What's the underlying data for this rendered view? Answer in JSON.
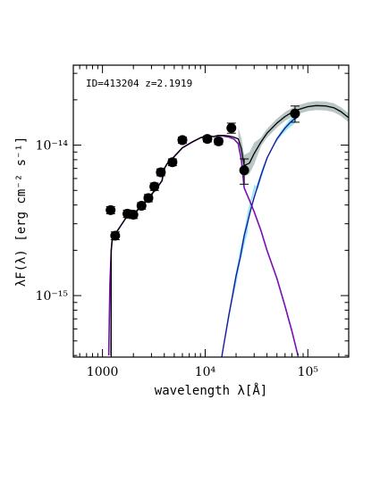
{
  "chart_data": {
    "type": "scatter",
    "annotation": "ID=413204 z=2.1919",
    "xlabel": "wavelength λ[Å]",
    "ylabel": "λF(λ) [erg cm⁻² s⁻¹]",
    "xscale": "log",
    "yscale": "log",
    "xlim": [
      520,
      250000
    ],
    "ylim": [
      3.9e-16,
      3.4e-14
    ],
    "grid": false,
    "legend": "none",
    "x_ticks": [
      {
        "value": 1000,
        "label": "1000"
      },
      {
        "value": 10000,
        "label": "10⁴"
      },
      {
        "value": 100000,
        "label": "10⁵"
      }
    ],
    "y_ticks": [
      {
        "value": 1e-15,
        "label": "10⁻¹⁵"
      },
      {
        "value": 1e-14,
        "label": "10⁻¹⁴"
      }
    ],
    "points": [
      {
        "x": 1200,
        "y": 3.7e-15,
        "err": 2e-16
      },
      {
        "x": 1330,
        "y": 2.5e-15,
        "err": 1.5e-16
      },
      {
        "x": 1750,
        "y": 3.5e-15,
        "err": 2e-16
      },
      {
        "x": 2000,
        "y": 3.45e-15,
        "err": 2e-16
      },
      {
        "x": 2400,
        "y": 3.95e-15,
        "err": 2e-16
      },
      {
        "x": 2800,
        "y": 4.45e-15,
        "err": 2.5e-16
      },
      {
        "x": 3200,
        "y": 5.3e-15,
        "err": 3e-16
      },
      {
        "x": 3700,
        "y": 6.6e-15,
        "err": 3.5e-16
      },
      {
        "x": 4800,
        "y": 7.7e-15,
        "err": 4e-16
      },
      {
        "x": 6000,
        "y": 1.08e-14,
        "err": 5e-16
      },
      {
        "x": 10500,
        "y": 1.1e-14,
        "err": 5e-16
      },
      {
        "x": 13500,
        "y": 1.06e-14,
        "err": 5e-16
      },
      {
        "x": 18000,
        "y": 1.3e-14,
        "err": 1e-15
      },
      {
        "x": 24000,
        "y": 6.8e-15,
        "err": 1.3e-15
      },
      {
        "x": 75000,
        "y": 1.62e-14,
        "err": 2e-15
      }
    ],
    "series": [
      {
        "color": "#7a0fb8",
        "x": [
          1150,
          1180,
          1216,
          1240,
          1300,
          1400,
          1550,
          1700,
          1900,
          2100,
          2300,
          2600,
          3000,
          3400,
          3800,
          4000,
          4300,
          5000,
          6000,
          7500,
          9000,
          10500,
          12000,
          13500,
          15000,
          17000,
          19000,
          21000,
          22500,
          24000,
          27000,
          30000,
          35000,
          40000,
          50000,
          60000,
          70000,
          80000
        ],
        "y": [
          4e-16,
          1.2e-15,
          2e-15,
          2.3e-15,
          2.5e-15,
          2.7e-15,
          3e-15,
          3.3e-15,
          3.4e-15,
          3.6e-15,
          3.8e-15,
          4.2e-15,
          4.7e-15,
          5.2e-15,
          5.8e-15,
          7e-15,
          7.6e-15,
          8.4e-15,
          9.6e-15,
          1.05e-14,
          1.12e-14,
          1.15e-14,
          1.14e-14,
          1.16e-14,
          1.15e-14,
          1.13e-14,
          1.1e-14,
          1.02e-14,
          8e-15,
          5.2e-15,
          4.3e-15,
          3.6e-15,
          2.7e-15,
          2e-15,
          1.3e-15,
          8.5e-16,
          5.8e-16,
          4e-16
        ]
      },
      {
        "color": "#000000",
        "x": [
          1210,
          1216,
          1240,
          1300,
          1400,
          1550,
          1700,
          1900,
          2100,
          2300,
          2600,
          3000,
          3400,
          3800,
          4000,
          4300,
          5000,
          6000,
          7500,
          9000,
          10500,
          12000,
          13500,
          15000,
          17000,
          19000,
          21000,
          22500,
          24000,
          27000,
          30000,
          35000,
          40000,
          50000,
          60000,
          70000,
          80000,
          100000,
          120000,
          150000,
          180000,
          210000,
          250000
        ],
        "y": [
          4e-16,
          2e-15,
          2.3e-15,
          2.5e-15,
          2.7e-15,
          3e-15,
          3.3e-15,
          3.4e-15,
          3.6e-15,
          3.8e-15,
          4.2e-15,
          4.7e-15,
          5.2e-15,
          5.8e-15,
          7e-15,
          7.6e-15,
          8.4e-15,
          9.6e-15,
          1.05e-14,
          1.12e-14,
          1.15e-14,
          1.14e-14,
          1.16e-14,
          1.16e-14,
          1.15e-14,
          1.13e-14,
          1.1e-14,
          9.5e-15,
          7.3e-15,
          7.6e-15,
          8.8e-15,
          1.05e-14,
          1.2e-14,
          1.4e-14,
          1.55e-14,
          1.65e-14,
          1.72e-14,
          1.8e-14,
          1.83e-14,
          1.82e-14,
          1.77e-14,
          1.67e-14,
          1.52e-14
        ]
      },
      {
        "color": "#1a1aa0",
        "x": [
          14500,
          15000,
          16000,
          17000,
          18500,
          20000,
          22000,
          24000,
          26000,
          28000,
          30000,
          35000,
          40000,
          50000,
          60000,
          70000,
          80000
        ],
        "y": [
          3.9e-16,
          4.5e-16,
          5.8e-16,
          7.4e-16,
          1e-15,
          1.35e-15,
          1.8e-15,
          2.5e-15,
          3.1e-15,
          3.8e-15,
          4.5e-15,
          6.3e-15,
          8.2e-15,
          1.1e-14,
          1.3e-14,
          1.45e-14,
          1.55e-14
        ]
      }
    ]
  }
}
